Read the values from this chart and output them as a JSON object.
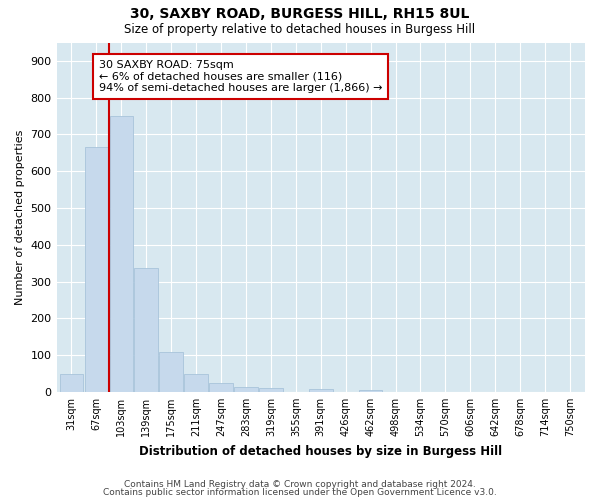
{
  "title1": "30, SAXBY ROAD, BURGESS HILL, RH15 8UL",
  "title2": "Size of property relative to detached houses in Burgess Hill",
  "xlabel": "Distribution of detached houses by size in Burgess Hill",
  "ylabel": "Number of detached properties",
  "categories": [
    "31sqm",
    "67sqm",
    "103sqm",
    "139sqm",
    "175sqm",
    "211sqm",
    "247sqm",
    "283sqm",
    "319sqm",
    "355sqm",
    "391sqm",
    "426sqm",
    "462sqm",
    "498sqm",
    "534sqm",
    "570sqm",
    "606sqm",
    "642sqm",
    "678sqm",
    "714sqm",
    "750sqm"
  ],
  "bar_heights": [
    50,
    665,
    750,
    337,
    108,
    50,
    25,
    14,
    10,
    0,
    7,
    0,
    5,
    0,
    0,
    0,
    0,
    0,
    0,
    0,
    0
  ],
  "bar_color": "#c6d9ec",
  "bar_edge_color": "#a8c4db",
  "vline_x": 1.5,
  "vline_color": "#cc0000",
  "annotation_line1": "30 SAXBY ROAD: 75sqm",
  "annotation_line2": "← 6% of detached houses are smaller (116)",
  "annotation_line3": "94% of semi-detached houses are larger (1,866) →",
  "annotation_box_color": "white",
  "annotation_box_edge": "#cc0000",
  "ylim": [
    0,
    950
  ],
  "yticks": [
    0,
    100,
    200,
    300,
    400,
    500,
    600,
    700,
    800,
    900
  ],
  "footer1": "Contains HM Land Registry data © Crown copyright and database right 2024.",
  "footer2": "Contains public sector information licensed under the Open Government Licence v3.0.",
  "bg_color": "#ffffff",
  "plot_bg_color": "#d8e8f0"
}
